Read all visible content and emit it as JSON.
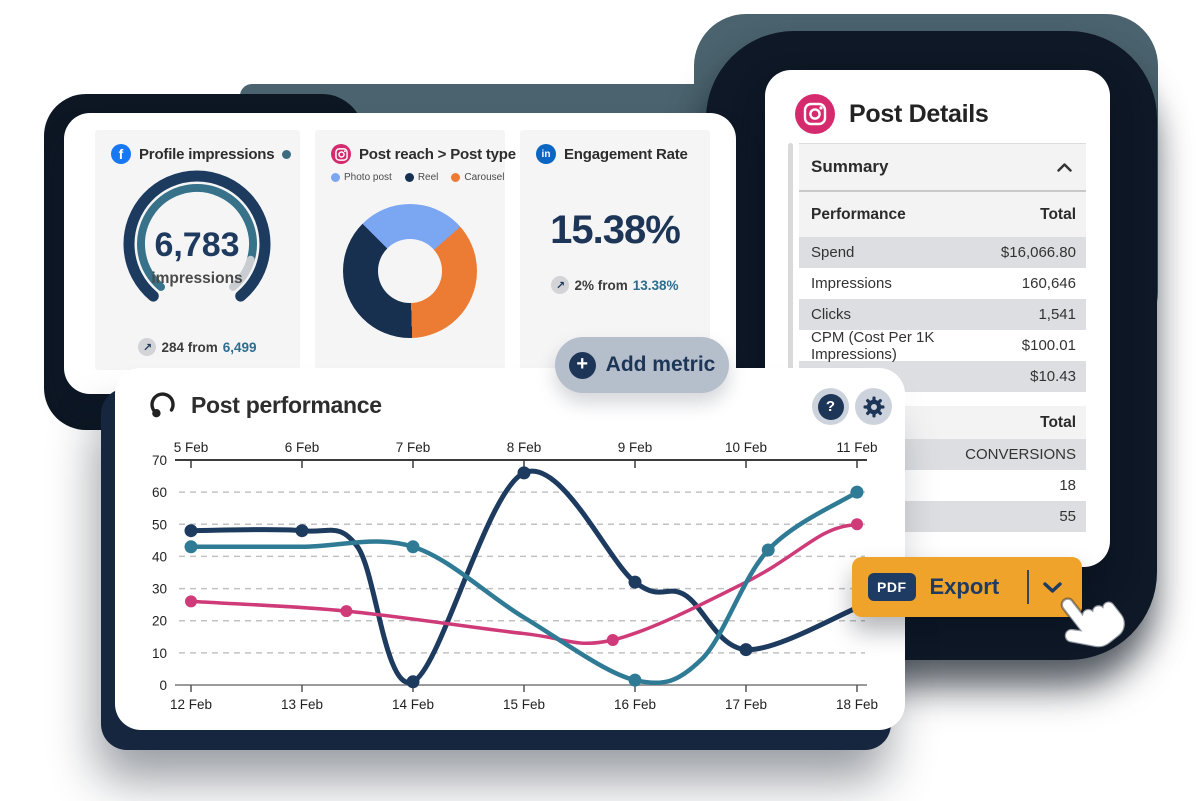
{
  "colors": {
    "navy": "#1d3a5f",
    "navy_dark": "#0e1826",
    "teal_shape": "#4a636e",
    "line_navy": "#1d3a5f",
    "line_pink": "#cf3a78",
    "line_teal": "#2f7b95",
    "accent_orange": "#f0a32b",
    "gauge_progress": "#37718a",
    "gauge_remainder": "#c9cdd2",
    "baseline_text": "#2d6e8e",
    "row_alt": "#dcdee1"
  },
  "metrics": {
    "card1": {
      "title": "Profile impressions",
      "value": "6,783",
      "unit": "impressions",
      "delta": "284 from",
      "baseline": "6,499",
      "delta_arrow": "↗",
      "progress": 0.88
    },
    "card2": {
      "title": "Post reach > Post type",
      "legend": [
        {
          "label": "Photo post",
          "color": "#7ba6f2"
        },
        {
          "label": "Reel",
          "color": "#17304f"
        },
        {
          "label": "Carousel",
          "color": "#ec7c33"
        }
      ],
      "donut": {
        "start_deg": 315,
        "segments": [
          {
            "label": "Photo post",
            "color": "#7ba6f2",
            "pct": 26
          },
          {
            "label": "Carousel",
            "color": "#ec7c33",
            "pct": 36
          },
          {
            "label": "Reel",
            "color": "#17304f",
            "pct": 38
          }
        ]
      }
    },
    "card3": {
      "title": "Engagement Rate",
      "value": "15.38%",
      "delta": "2% from",
      "baseline": "13.38%",
      "delta_arrow": "↗"
    },
    "add_metric": "Add metric"
  },
  "post_details": {
    "title": "Post Details",
    "summary_label": "Summary",
    "performance_table": {
      "label_header": "Performance",
      "value_header": "Total",
      "rows": [
        {
          "label": "Spend",
          "value": "$16,066.80"
        },
        {
          "label": "Impressions",
          "value": "160,646"
        },
        {
          "label": "Clicks",
          "value": "1,541"
        },
        {
          "label": "CPM (Cost Per 1K Impressions)",
          "value": "$100.01"
        },
        {
          "label": "",
          "value": "$10.43"
        }
      ]
    },
    "conversions_table": {
      "value_header": "Total",
      "rows": [
        {
          "label": "",
          "value": "CONVERSIONS"
        },
        {
          "label": "",
          "value": "18"
        },
        {
          "label": "",
          "value": "55"
        }
      ]
    }
  },
  "chart_card": {
    "title": "Post performance"
  },
  "export_button": {
    "badge": "PDF",
    "label": "Export"
  },
  "chart_data": {
    "type": "line",
    "title": "Post performance",
    "x_top_labels": [
      "5 Feb",
      "6 Feb",
      "7 Feb",
      "8 Feb",
      "9 Feb",
      "10 Feb",
      "11 Feb"
    ],
    "x_bottom_labels": [
      "12 Feb",
      "13 Feb",
      "14 Feb",
      "15 Feb",
      "16 Feb",
      "17 Feb",
      "18 Feb"
    ],
    "x_domain": [
      12,
      18
    ],
    "y_ticks": [
      0,
      10,
      20,
      30,
      40,
      50,
      60,
      70
    ],
    "ylim": [
      0,
      70
    ],
    "grid": "dashed horizontal",
    "legend_position": "none",
    "series": [
      {
        "name": "series-navy",
        "color": "#1d3a5f",
        "width": 5,
        "marker_r": 6.5,
        "points": [
          [
            12,
            48
          ],
          [
            13,
            48
          ],
          [
            13.5,
            43
          ],
          [
            14,
            1
          ],
          [
            15,
            66
          ],
          [
            16,
            32
          ],
          [
            16.45,
            28
          ],
          [
            17,
            11
          ],
          [
            18,
            24
          ]
        ],
        "markers": [
          [
            12,
            48
          ],
          [
            13,
            48
          ],
          [
            14,
            1
          ],
          [
            15,
            66
          ],
          [
            16,
            32
          ],
          [
            17,
            11
          ]
        ]
      },
      {
        "name": "series-pink",
        "color": "#cf3a78",
        "width": 3.5,
        "marker_r": 6,
        "points": [
          [
            12,
            26
          ],
          [
            13.4,
            23
          ],
          [
            15,
            16
          ],
          [
            15.8,
            14
          ],
          [
            17,
            32
          ],
          [
            17.7,
            47
          ],
          [
            18,
            50
          ]
        ],
        "markers": [
          [
            12,
            26
          ],
          [
            13.4,
            23
          ],
          [
            15.8,
            14
          ],
          [
            18,
            50
          ]
        ]
      },
      {
        "name": "series-teal",
        "color": "#2f7b95",
        "width": 4.5,
        "marker_r": 6.5,
        "points": [
          [
            12,
            43
          ],
          [
            13,
            43
          ],
          [
            14,
            43
          ],
          [
            15,
            21
          ],
          [
            16,
            1.5
          ],
          [
            16.6,
            8
          ],
          [
            17.2,
            42
          ],
          [
            18,
            60
          ]
        ],
        "markers": [
          [
            12,
            43
          ],
          [
            14,
            43
          ],
          [
            16,
            1.5
          ],
          [
            17.2,
            42
          ],
          [
            18,
            60
          ]
        ]
      }
    ]
  }
}
